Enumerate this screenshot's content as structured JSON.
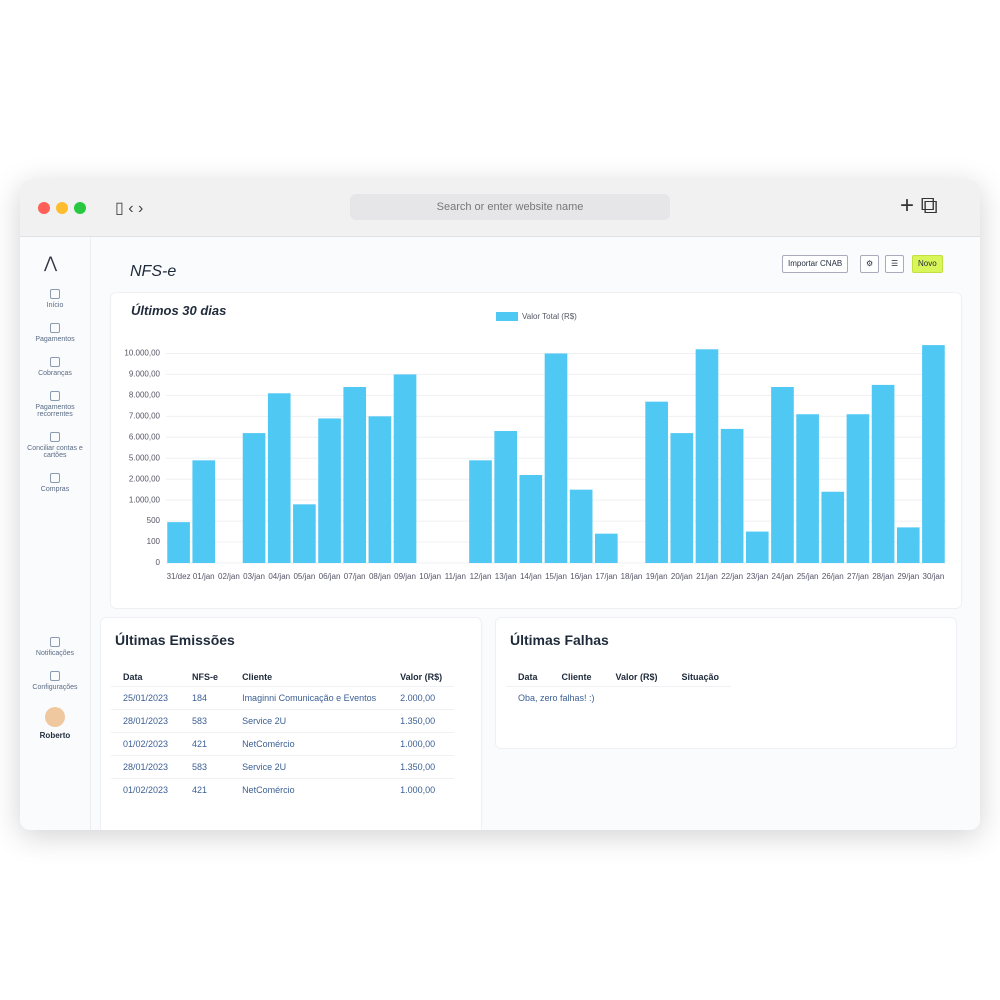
{
  "browser": {
    "search": "Search or enter website name"
  },
  "sidebar": {
    "items": [
      "Início",
      "Pagamentos",
      "Cobranças",
      "Pagamentos recorrentes",
      "Conciliar contas e cartões",
      "Compras"
    ],
    "bottom_items": [
      "Notificações",
      "Configurações"
    ],
    "user": "Roberto"
  },
  "header": {
    "title": "NFS-e",
    "buttons": [
      "Importar CNAB",
      "Novo"
    ]
  },
  "chart_data": {
    "type": "bar",
    "title": "Últimos 30 dias",
    "categories": [
      "31/dez",
      "01/jan",
      "02/jan",
      "03/jan",
      "04/jan",
      "05/jan",
      "06/jan",
      "07/jan",
      "08/jan",
      "09/jan",
      "10/jan",
      "11/jan",
      "12/jan",
      "13/jan",
      "14/jan",
      "15/jan",
      "16/jan",
      "17/jan",
      "18/jan",
      "19/jan",
      "20/jan",
      "21/jan",
      "22/jan",
      "23/jan",
      "24/jan",
      "25/jan",
      "26/jan",
      "27/jan",
      "28/jan",
      "29/jan",
      "30/jan"
    ],
    "series": [
      {
        "name": "Valor Total (R$)",
        "color": "#4fc8f3",
        "values": [
          480,
          4700,
          null,
          6200,
          8100,
          900,
          6900,
          8400,
          7000,
          9000,
          null,
          null,
          4700,
          6300,
          2600,
          10000,
          1500,
          260,
          null,
          7700,
          6200,
          10200,
          6400,
          300,
          8400,
          7100,
          1400,
          7100,
          8500,
          380,
          10400
        ]
      }
    ],
    "ylim": [
      0,
      10500
    ],
    "yticks": [
      0,
      100,
      500,
      {
        "value": 1000,
        "label": "1.000,00"
      },
      {
        "value": 2000,
        "label": "2.000,00"
      },
      {
        "value": 5000,
        "label": "5.000,00"
      },
      {
        "value": 6000,
        "label": "6.000,00"
      },
      {
        "value": 7000,
        "label": "7.000,00"
      },
      {
        "value": 8000,
        "label": "8.000,00"
      },
      {
        "value": 9000,
        "label": "9.000,00"
      },
      {
        "value": 10000,
        "label": "10.000,00"
      }
    ],
    "grid": true
  },
  "emissions": {
    "title": "Últimas Emissões",
    "columns": [
      "Data",
      "NFS-e",
      "Cliente",
      "Valor (R$)"
    ],
    "rows": [
      [
        "25/01/2023",
        "184",
        "Imaginni Comunicação e Eventos",
        "2.000,00"
      ],
      [
        "28/01/2023",
        "583",
        "Service 2U",
        "1.350,00"
      ],
      [
        "01/02/2023",
        "421",
        "NetComércio",
        "1.000,00"
      ],
      [
        "28/01/2023",
        "583",
        "Service 2U",
        "1.350,00"
      ],
      [
        "01/02/2023",
        "421",
        "NetComércio",
        "1.000,00"
      ]
    ]
  },
  "failures": {
    "title": "Últimas Falhas",
    "columns": [
      "Data",
      "Cliente",
      "Valor (R$)",
      "Situação"
    ],
    "empty": "Oba, zero falhas! :)"
  }
}
